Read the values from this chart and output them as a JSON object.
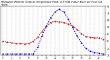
{
  "hours": [
    0,
    1,
    2,
    3,
    4,
    5,
    6,
    7,
    8,
    9,
    10,
    11,
    12,
    13,
    14,
    15,
    16,
    17,
    18,
    19,
    20,
    21,
    22,
    23
  ],
  "temp_red": [
    30,
    29,
    28,
    27,
    27,
    26,
    27,
    30,
    36,
    44,
    52,
    57,
    59,
    58,
    57,
    55,
    52,
    47,
    41,
    37,
    36,
    35,
    35,
    33
  ],
  "thsw_blue": [
    12,
    12,
    12,
    12,
    12,
    12,
    12,
    12,
    22,
    38,
    52,
    64,
    72,
    76,
    72,
    62,
    50,
    38,
    28,
    20,
    16,
    14,
    13,
    12
  ],
  "background": "#ffffff",
  "red_color": "#cc0000",
  "blue_color": "#0000cc",
  "grid_color": "#808080",
  "ylim_min": 10,
  "ylim_max": 80,
  "ytick_values": [
    10,
    20,
    30,
    40,
    50,
    60,
    70,
    80
  ],
  "ytick_labels": [
    "10",
    "20",
    "30",
    "40",
    "50",
    "60",
    "70",
    "80"
  ],
  "xlim_min": 0,
  "xlim_max": 23,
  "title_fontsize": 2.5,
  "tick_fontsize": 2.2,
  "line_width": 0.7,
  "marker_size": 1.0,
  "title": "Milwaukee Weather Outdoor Temperature (Red) vs THSW Index (Blue) per Hour (24 Hours)"
}
